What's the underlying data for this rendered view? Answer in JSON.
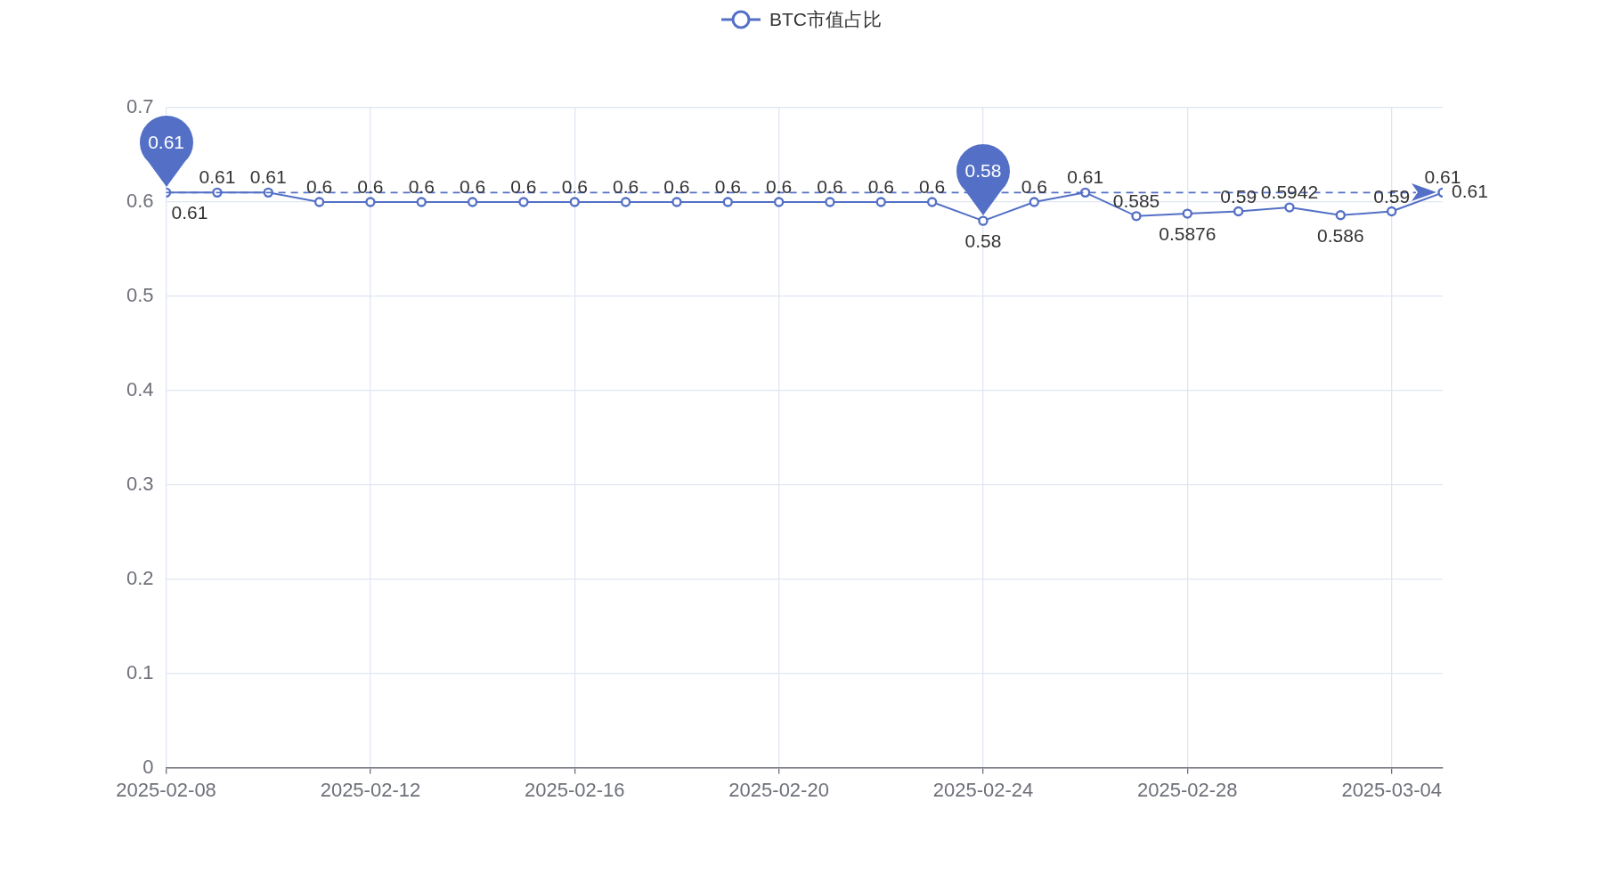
{
  "chart_data": {
    "type": "line",
    "x": [
      "2025-02-08",
      "2025-02-09",
      "2025-02-10",
      "2025-02-11",
      "2025-02-12",
      "2025-02-13",
      "2025-02-14",
      "2025-02-15",
      "2025-02-16",
      "2025-02-17",
      "2025-02-18",
      "2025-02-19",
      "2025-02-20",
      "2025-02-21",
      "2025-02-22",
      "2025-02-23",
      "2025-02-24",
      "2025-02-25",
      "2025-02-26",
      "2025-02-27",
      "2025-02-28",
      "2025-03-01",
      "2025-03-02",
      "2025-03-03",
      "2025-03-04",
      "2025-03-05"
    ],
    "series": [
      {
        "name": "BTC市值占比",
        "color": "#5470c6",
        "values": [
          0.61,
          0.61,
          0.61,
          0.6,
          0.6,
          0.6,
          0.6,
          0.6,
          0.6,
          0.6,
          0.6,
          0.6,
          0.6,
          0.6,
          0.6,
          0.6,
          0.58,
          0.6,
          0.61,
          0.585,
          0.5876,
          0.59,
          0.5942,
          0.586,
          0.59,
          0.61
        ]
      }
    ],
    "xlim": [
      "2025-02-08",
      "2025-03-05"
    ],
    "xticks": [
      "2025-02-08",
      "2025-02-12",
      "2025-02-16",
      "2025-02-20",
      "2025-02-24",
      "2025-02-28",
      "2025-03-04"
    ],
    "ylim": [
      0,
      0.7
    ],
    "yticks": [
      0,
      0.1,
      0.2,
      0.3,
      0.4,
      0.5,
      0.6,
      0.7
    ],
    "grid": true,
    "legend": "top",
    "marker": "circle",
    "line_style": "solid",
    "data_labels": true,
    "ref_lines": [
      {
        "axis": "y",
        "value": 0.61,
        "label": "0.61",
        "line_style": "dashed",
        "color": "#5470c6"
      }
    ],
    "annotations": [
      {
        "text": "0.61",
        "x": "2025-02-08",
        "y": 0.61
      },
      {
        "text": "0.58",
        "x": "2025-02-24",
        "y": 0.58
      }
    ]
  }
}
